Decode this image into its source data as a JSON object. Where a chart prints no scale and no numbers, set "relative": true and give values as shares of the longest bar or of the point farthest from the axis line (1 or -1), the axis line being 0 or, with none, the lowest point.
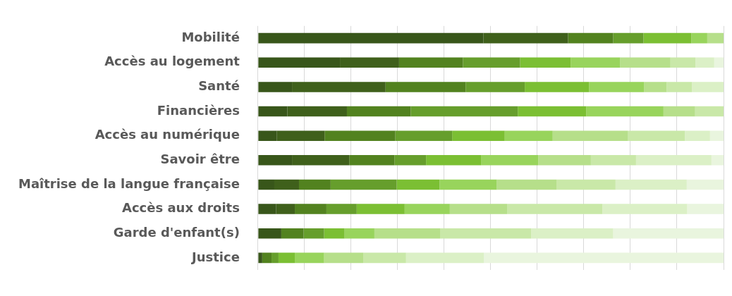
{
  "chart_data": {
    "type": "bar",
    "orientation": "horizontal",
    "stacked": true,
    "relative": true,
    "grid": "x",
    "legend": false,
    "categories": [
      "Mobilité",
      "Accès au logement",
      "Santé",
      "Financières",
      "Accès au numérique",
      "Savoir être",
      "Maîtrise de la langue française",
      "Accès aux droits",
      "Garde d'enfant(s)",
      "Justice"
    ],
    "series": [
      {
        "color": "#38561a",
        "values": [
          0.484,
          0.176,
          0.073,
          0.063,
          0.04,
          0.073,
          0.035,
          0.039,
          0.05,
          0.009
        ]
      },
      {
        "color": "#3f601b",
        "values": [
          0.182,
          0.127,
          0.201,
          0.128,
          0.103,
          0.123,
          0.053,
          0.04,
          0,
          0
        ]
      },
      {
        "color": "#52821f",
        "values": [
          0.097,
          0.137,
          0.172,
          0.137,
          0.152,
          0.097,
          0.068,
          0.068,
          0.048,
          0.02
        ]
      },
      {
        "color": "#669e2c",
        "values": [
          0.065,
          0.123,
          0.127,
          0.23,
          0.122,
          0.068,
          0.142,
          0.065,
          0.044,
          0.015
        ]
      },
      {
        "color": "#7bbf33",
        "values": [
          0.103,
          0.109,
          0.138,
          0.147,
          0.113,
          0.118,
          0.092,
          0.103,
          0.044,
          0.035
        ]
      },
      {
        "color": "#98d45c",
        "values": [
          0.034,
          0.106,
          0.118,
          0.166,
          0.103,
          0.123,
          0.123,
          0.097,
          0.064,
          0.063
        ]
      },
      {
        "color": "#b6df8a",
        "values": [
          0.035,
          0.108,
          0.049,
          0.068,
          0.161,
          0.113,
          0.128,
          0.123,
          0.141,
          0.084
        ]
      },
      {
        "color": "#c9e8a8",
        "values": [
          0,
          0.054,
          0.054,
          0.061,
          0.123,
          0.097,
          0.127,
          0.205,
          0.196,
          0.092
        ]
      },
      {
        "color": "#dbf0c6",
        "values": [
          0,
          0.04,
          0.068,
          0,
          0.054,
          0.162,
          0.153,
          0.182,
          0.176,
          0.167
        ]
      },
      {
        "color": "#e9f5de",
        "values": [
          0,
          0.02,
          0,
          0,
          0.029,
          0.026,
          0.079,
          0.078,
          0.237,
          0.515
        ]
      }
    ]
  }
}
